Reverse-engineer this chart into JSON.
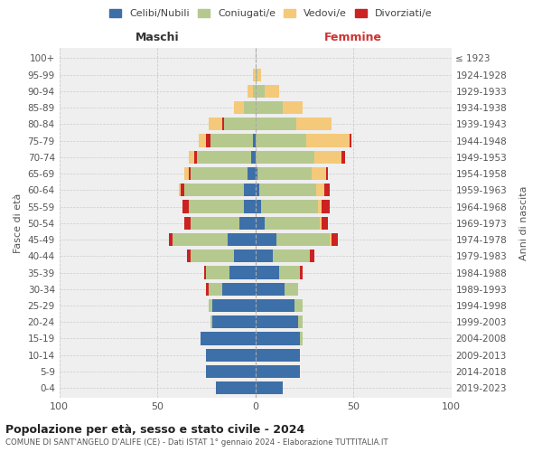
{
  "age_groups": [
    "0-4",
    "5-9",
    "10-14",
    "15-19",
    "20-24",
    "25-29",
    "30-34",
    "35-39",
    "40-44",
    "45-49",
    "50-54",
    "55-59",
    "60-64",
    "65-69",
    "70-74",
    "75-79",
    "80-84",
    "85-89",
    "90-94",
    "95-99",
    "100+"
  ],
  "birth_years": [
    "2019-2023",
    "2014-2018",
    "2009-2013",
    "2004-2008",
    "1999-2003",
    "1994-1998",
    "1989-1993",
    "1984-1988",
    "1979-1983",
    "1974-1978",
    "1969-1973",
    "1964-1968",
    "1959-1963",
    "1954-1958",
    "1949-1953",
    "1944-1948",
    "1939-1943",
    "1934-1938",
    "1929-1933",
    "1924-1928",
    "≤ 1923"
  ],
  "colors": {
    "celibi": "#3d6fa8",
    "coniugati": "#b5c98e",
    "vedovi": "#f5c97a",
    "divorziati": "#cc2222"
  },
  "males": {
    "celibi": [
      20,
      25,
      25,
      28,
      22,
      22,
      17,
      13,
      11,
      14,
      8,
      6,
      6,
      4,
      2,
      1,
      0,
      0,
      0,
      0,
      0
    ],
    "coniugati": [
      0,
      0,
      0,
      0,
      1,
      2,
      7,
      12,
      22,
      28,
      25,
      28,
      30,
      29,
      28,
      22,
      16,
      6,
      1,
      0,
      0
    ],
    "vedovi": [
      0,
      0,
      0,
      0,
      0,
      0,
      0,
      0,
      0,
      0,
      0,
      0,
      1,
      2,
      3,
      4,
      7,
      5,
      3,
      1,
      0
    ],
    "divorziati": [
      0,
      0,
      0,
      0,
      0,
      0,
      1,
      1,
      2,
      2,
      3,
      3,
      2,
      1,
      1,
      2,
      1,
      0,
      0,
      0,
      0
    ]
  },
  "females": {
    "celibi": [
      14,
      23,
      23,
      23,
      22,
      20,
      15,
      12,
      9,
      11,
      5,
      3,
      2,
      1,
      0,
      0,
      0,
      0,
      0,
      0,
      0
    ],
    "coniugati": [
      0,
      0,
      0,
      1,
      2,
      4,
      7,
      11,
      19,
      27,
      28,
      29,
      29,
      28,
      30,
      26,
      21,
      14,
      5,
      1,
      0
    ],
    "vedovi": [
      0,
      0,
      0,
      0,
      0,
      0,
      0,
      0,
      0,
      1,
      1,
      2,
      4,
      7,
      14,
      22,
      18,
      10,
      7,
      2,
      0
    ],
    "divorziati": [
      0,
      0,
      0,
      0,
      0,
      0,
      0,
      1,
      2,
      3,
      3,
      4,
      3,
      1,
      2,
      1,
      0,
      0,
      0,
      0,
      0
    ]
  },
  "title_main": "Popolazione per età, sesso e stato civile - 2024",
  "title_sub": "COMUNE DI SANT'ANGELO D'ALIFE (CE) - Dati ISTAT 1° gennaio 2024 - Elaborazione TUTTITALIA.IT",
  "xlabel_left": "Maschi",
  "xlabel_right": "Femmine",
  "ylabel_left": "Fasce di età",
  "ylabel_right": "Anni di nascita",
  "xlim": 100,
  "bg_color": "#efefef",
  "grid_color": "#cccccc",
  "legend_labels": [
    "Celibi/Nubili",
    "Coniugati/e",
    "Vedovi/e",
    "Divorziati/e"
  ]
}
